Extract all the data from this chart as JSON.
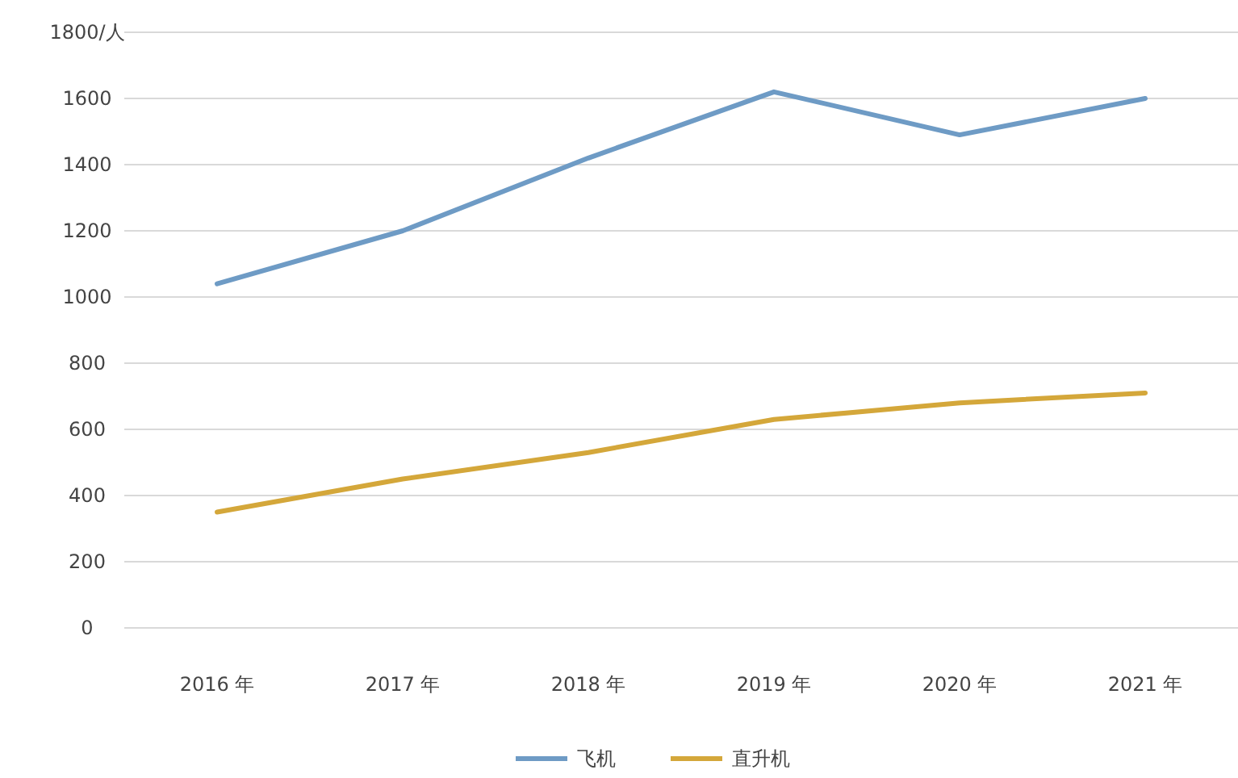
{
  "chart_data": {
    "type": "line",
    "categories": [
      "2016 年",
      "2017 年",
      "2018 年",
      "2019 年",
      "2020 年",
      "2021 年"
    ],
    "series": [
      {
        "name": "飞机",
        "color": "#6e9bc5",
        "values": [
          1040,
          1200,
          1420,
          1620,
          1490,
          1600
        ]
      },
      {
        "name": "直升机",
        "color": "#d4a73a",
        "values": [
          350,
          450,
          530,
          630,
          680,
          710
        ]
      }
    ],
    "ylim": [
      0,
      1800
    ],
    "yticks": [
      0,
      200,
      400,
      600,
      800,
      1000,
      1200,
      1400,
      1600,
      {
        "value": 1800,
        "label": "1800/人"
      }
    ],
    "grid": "y",
    "legend": "bottom",
    "marker": "none",
    "line_style": "solid"
  }
}
